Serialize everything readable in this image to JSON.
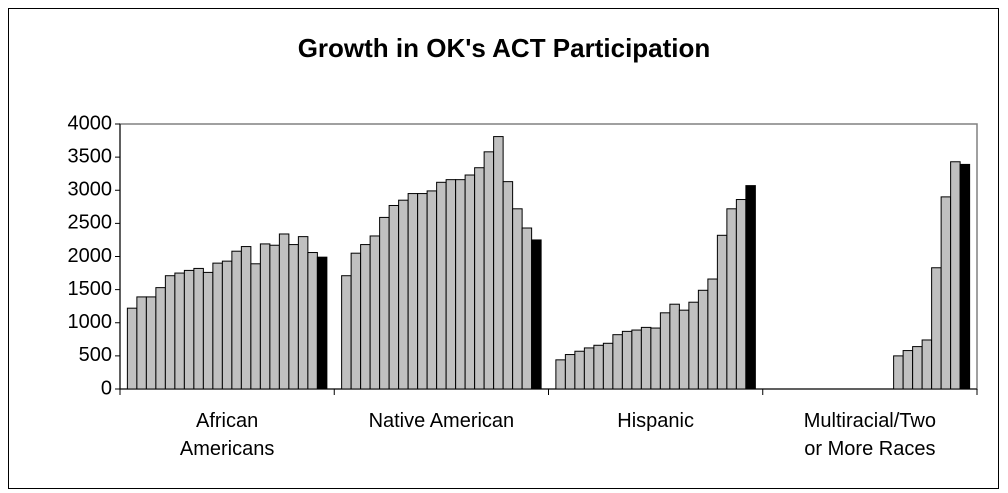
{
  "chart_data": {
    "type": "bar",
    "title": "Growth in OK's ACT Participation",
    "categories": [
      "African Americans",
      "Native American",
      "Hispanic",
      "Multiracial/Two or More Races"
    ],
    "ylim": [
      0,
      4000
    ],
    "yticks": [
      0,
      500,
      1000,
      1500,
      2000,
      2500,
      3000,
      3500,
      4000
    ],
    "series": [
      {
        "color": "#c0c0c0",
        "values": [
          1220,
          1710,
          440,
          null
        ]
      },
      {
        "color": "#c0c0c0",
        "values": [
          1390,
          2050,
          520,
          null
        ]
      },
      {
        "color": "#c0c0c0",
        "values": [
          1390,
          2180,
          570,
          null
        ]
      },
      {
        "color": "#c0c0c0",
        "values": [
          1530,
          2310,
          620,
          null
        ]
      },
      {
        "color": "#c0c0c0",
        "values": [
          1710,
          2590,
          660,
          null
        ]
      },
      {
        "color": "#c0c0c0",
        "values": [
          1750,
          2770,
          690,
          null
        ]
      },
      {
        "color": "#c0c0c0",
        "values": [
          1790,
          2850,
          820,
          null
        ]
      },
      {
        "color": "#c0c0c0",
        "values": [
          1820,
          2950,
          870,
          null
        ]
      },
      {
        "color": "#c0c0c0",
        "values": [
          1760,
          2950,
          890,
          null
        ]
      },
      {
        "color": "#c0c0c0",
        "values": [
          1900,
          2990,
          930,
          null
        ]
      },
      {
        "color": "#c0c0c0",
        "values": [
          1930,
          3120,
          920,
          null
        ]
      },
      {
        "color": "#c0c0c0",
        "values": [
          2080,
          3160,
          1150,
          null
        ]
      },
      {
        "color": "#c0c0c0",
        "values": [
          2150,
          3160,
          1280,
          null
        ]
      },
      {
        "color": "#c0c0c0",
        "values": [
          1890,
          3230,
          1190,
          500
        ]
      },
      {
        "color": "#c0c0c0",
        "values": [
          2190,
          3340,
          1310,
          580
        ]
      },
      {
        "color": "#c0c0c0",
        "values": [
          2170,
          3580,
          1490,
          640
        ]
      },
      {
        "color": "#c0c0c0",
        "values": [
          2340,
          3810,
          1660,
          740
        ]
      },
      {
        "color": "#c0c0c0",
        "values": [
          2180,
          3130,
          2320,
          1830
        ]
      },
      {
        "color": "#c0c0c0",
        "values": [
          2300,
          2720,
          2720,
          2900
        ]
      },
      {
        "color": "#c0c0c0",
        "values": [
          2060,
          2430,
          2860,
          3430
        ]
      },
      {
        "color": "#000000",
        "values": [
          1990,
          2250,
          3070,
          3390
        ]
      }
    ]
  }
}
